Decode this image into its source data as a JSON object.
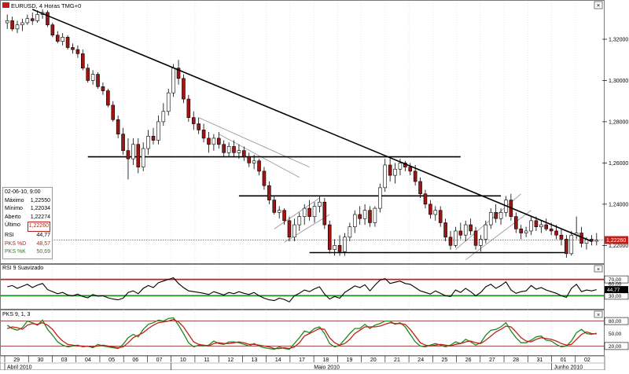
{
  "window": {
    "symbol_label": "EURUSD, 4 Horas TMG+0",
    "icons": [
      "flag-icon",
      "close-icon"
    ]
  },
  "colors": {
    "bull_candle": "#ffffff",
    "bear_candle": "#a01414",
    "trendline": "#000000",
    "channel": "#9a9a9a",
    "rsi_line": "#000000",
    "rsi_upper": "#c0201a",
    "rsi_lower": "#1e8a1e",
    "pks_d": "#c0201a",
    "pks_k": "#1e8a1e",
    "price_tag": "#c0201a"
  },
  "info_panel": {
    "date": "02-06-10, 9:00",
    "rows": [
      {
        "label": "Máximo",
        "value": "1,22550"
      },
      {
        "label": "Mínimo",
        "value": "1,22034"
      },
      {
        "label": "Aberto",
        "value": "1,22274"
      },
      {
        "label": "Último",
        "value": "1,22260"
      },
      {
        "label": "RSI",
        "value": "44,77"
      },
      {
        "label": "PKS %D",
        "value": "48,57"
      },
      {
        "label": "PKS %K",
        "value": "50,69"
      }
    ]
  },
  "chart_data": [
    {
      "type": "candlestick",
      "title": "EURUSD, 4 Horas TMG+0",
      "ylim": [
        1.2125,
        1.336
      ],
      "yticks": [
        "1,32000",
        "1,30000",
        "1,28000",
        "1,26000",
        "1,24000",
        "1,22000"
      ],
      "last_price_label": "1,22260",
      "last_price": 1.2226,
      "x_day_labels": [
        "29",
        "30",
        "03",
        "04",
        "05",
        "06",
        "07",
        "10",
        "11",
        "12",
        "13",
        "14",
        "17",
        "18",
        "19",
        "20",
        "21",
        "24",
        "25",
        "26",
        "27",
        "28",
        "31",
        "01",
        "02"
      ],
      "x_month_labels": [
        "Abril 2010",
        "Maio 2010",
        "Junho 2010"
      ],
      "candles": [
        [
          1.328,
          1.332,
          1.325,
          1.329
        ],
        [
          1.329,
          1.331,
          1.324,
          1.325
        ],
        [
          1.325,
          1.329,
          1.323,
          1.327
        ],
        [
          1.327,
          1.33,
          1.324,
          1.328
        ],
        [
          1.328,
          1.332,
          1.327,
          1.33
        ],
        [
          1.33,
          1.333,
          1.327,
          1.329
        ],
        [
          1.329,
          1.334,
          1.328,
          1.332
        ],
        [
          1.332,
          1.3345,
          1.33,
          1.333
        ],
        [
          1.333,
          1.334,
          1.326,
          1.327
        ],
        [
          1.327,
          1.328,
          1.321,
          1.322
        ],
        [
          1.322,
          1.324,
          1.318,
          1.319
        ],
        [
          1.319,
          1.323,
          1.317,
          1.321
        ],
        [
          1.321,
          1.322,
          1.315,
          1.316
        ],
        [
          1.316,
          1.318,
          1.313,
          1.315
        ],
        [
          1.315,
          1.317,
          1.311,
          1.313
        ],
        [
          1.313,
          1.315,
          1.305,
          1.306
        ],
        [
          1.306,
          1.308,
          1.299,
          1.3
        ],
        [
          1.3,
          1.305,
          1.298,
          1.303
        ],
        [
          1.303,
          1.304,
          1.296,
          1.297
        ],
        [
          1.297,
          1.299,
          1.293,
          1.295
        ],
        [
          1.295,
          1.296,
          1.287,
          1.288
        ],
        [
          1.288,
          1.29,
          1.28,
          1.281
        ],
        [
          1.281,
          1.283,
          1.272,
          1.274
        ],
        [
          1.274,
          1.277,
          1.264,
          1.266
        ],
        [
          1.266,
          1.272,
          1.252,
          1.262
        ],
        [
          1.262,
          1.272,
          1.259,
          1.269
        ],
        [
          1.269,
          1.272,
          1.255,
          1.258
        ],
        [
          1.258,
          1.27,
          1.256,
          1.267
        ],
        [
          1.267,
          1.276,
          1.264,
          1.273
        ],
        [
          1.273,
          1.277,
          1.269,
          1.271
        ],
        [
          1.271,
          1.283,
          1.269,
          1.28
        ],
        [
          1.28,
          1.289,
          1.278,
          1.285
        ],
        [
          1.285,
          1.296,
          1.283,
          1.294
        ],
        [
          1.294,
          1.308,
          1.292,
          1.306
        ],
        [
          1.306,
          1.31,
          1.298,
          1.301
        ],
        [
          1.301,
          1.303,
          1.289,
          1.291
        ],
        [
          1.291,
          1.293,
          1.28,
          1.282
        ],
        [
          1.282,
          1.285,
          1.276,
          1.279
        ],
        [
          1.279,
          1.282,
          1.274,
          1.276
        ],
        [
          1.276,
          1.279,
          1.27,
          1.272
        ],
        [
          1.272,
          1.275,
          1.265,
          1.269
        ],
        [
          1.269,
          1.274,
          1.266,
          1.272
        ],
        [
          1.272,
          1.275,
          1.267,
          1.269
        ],
        [
          1.269,
          1.271,
          1.263,
          1.265
        ],
        [
          1.265,
          1.27,
          1.263,
          1.268
        ],
        [
          1.268,
          1.271,
          1.263,
          1.265
        ],
        [
          1.265,
          1.269,
          1.262,
          1.266
        ],
        [
          1.266,
          1.268,
          1.261,
          1.263
        ],
        [
          1.263,
          1.265,
          1.258,
          1.26
        ],
        [
          1.26,
          1.264,
          1.257,
          1.261
        ],
        [
          1.261,
          1.262,
          1.254,
          1.256
        ],
        [
          1.256,
          1.258,
          1.247,
          1.249
        ],
        [
          1.249,
          1.251,
          1.24,
          1.242
        ],
        [
          1.242,
          1.244,
          1.235,
          1.236
        ],
        [
          1.236,
          1.239,
          1.233,
          1.237
        ],
        [
          1.237,
          1.238,
          1.23,
          1.232
        ],
        [
          1.232,
          1.234,
          1.222,
          1.224
        ],
        [
          1.224,
          1.233,
          1.222,
          1.23
        ],
        [
          1.23,
          1.236,
          1.227,
          1.234
        ],
        [
          1.234,
          1.24,
          1.23,
          1.238
        ],
        [
          1.238,
          1.242,
          1.232,
          1.234
        ],
        [
          1.234,
          1.241,
          1.231,
          1.239
        ],
        [
          1.239,
          1.244,
          1.236,
          1.241
        ],
        [
          1.241,
          1.243,
          1.228,
          1.23
        ],
        [
          1.23,
          1.232,
          1.216,
          1.218
        ],
        [
          1.218,
          1.223,
          1.215,
          1.22
        ],
        [
          1.22,
          1.225,
          1.215,
          1.217
        ],
        [
          1.217,
          1.226,
          1.215,
          1.224
        ],
        [
          1.224,
          1.231,
          1.222,
          1.229
        ],
        [
          1.229,
          1.237,
          1.226,
          1.235
        ],
        [
          1.235,
          1.239,
          1.23,
          1.233
        ],
        [
          1.233,
          1.24,
          1.23,
          1.237
        ],
        [
          1.237,
          1.239,
          1.229,
          1.231
        ],
        [
          1.231,
          1.239,
          1.229,
          1.238
        ],
        [
          1.238,
          1.25,
          1.236,
          1.248
        ],
        [
          1.248,
          1.262,
          1.246,
          1.259
        ],
        [
          1.259,
          1.263,
          1.251,
          1.254
        ],
        [
          1.254,
          1.26,
          1.25,
          1.257
        ],
        [
          1.257,
          1.262,
          1.254,
          1.26
        ],
        [
          1.26,
          1.261,
          1.256,
          1.258
        ],
        [
          1.258,
          1.26,
          1.254,
          1.256
        ],
        [
          1.256,
          1.259,
          1.249,
          1.251
        ],
        [
          1.251,
          1.253,
          1.243,
          1.245
        ],
        [
          1.245,
          1.247,
          1.238,
          1.24
        ],
        [
          1.24,
          1.242,
          1.233,
          1.235
        ],
        [
          1.235,
          1.239,
          1.232,
          1.237
        ],
        [
          1.237,
          1.239,
          1.229,
          1.231
        ],
        [
          1.231,
          1.233,
          1.222,
          1.224
        ],
        [
          1.224,
          1.227,
          1.218,
          1.22
        ],
        [
          1.22,
          1.229,
          1.219,
          1.227
        ],
        [
          1.227,
          1.231,
          1.223,
          1.225
        ],
        [
          1.225,
          1.232,
          1.222,
          1.23
        ],
        [
          1.23,
          1.233,
          1.225,
          1.227
        ],
        [
          1.227,
          1.229,
          1.218,
          1.22
        ],
        [
          1.22,
          1.225,
          1.217,
          1.223
        ],
        [
          1.223,
          1.232,
          1.221,
          1.23
        ],
        [
          1.23,
          1.238,
          1.228,
          1.236
        ],
        [
          1.236,
          1.24,
          1.231,
          1.233
        ],
        [
          1.233,
          1.238,
          1.23,
          1.236
        ],
        [
          1.236,
          1.244,
          1.234,
          1.242
        ],
        [
          1.242,
          1.245,
          1.232,
          1.234
        ],
        [
          1.234,
          1.236,
          1.226,
          1.228
        ],
        [
          1.228,
          1.23,
          1.223,
          1.226
        ],
        [
          1.226,
          1.229,
          1.224,
          1.227
        ],
        [
          1.227,
          1.234,
          1.225,
          1.232
        ],
        [
          1.232,
          1.234,
          1.227,
          1.229
        ],
        [
          1.229,
          1.232,
          1.226,
          1.23
        ],
        [
          1.23,
          1.233,
          1.227,
          1.228
        ],
        [
          1.228,
          1.231,
          1.225,
          1.227
        ],
        [
          1.227,
          1.23,
          1.223,
          1.225
        ],
        [
          1.225,
          1.228,
          1.22,
          1.223
        ],
        [
          1.223,
          1.225,
          1.214,
          1.216
        ],
        [
          1.216,
          1.227,
          1.215,
          1.225
        ],
        [
          1.225,
          1.234,
          1.223,
          1.226
        ],
        [
          1.226,
          1.229,
          1.219,
          1.221
        ],
        [
          1.221,
          1.224,
          1.218,
          1.223
        ],
        [
          1.223,
          1.225,
          1.22,
          1.222
        ],
        [
          1.222,
          1.226,
          1.22,
          1.2226
        ]
      ],
      "support_resistance_lines": [
        {
          "price": 1.263,
          "from_index": 16,
          "to_index": 90
        },
        {
          "price": 1.244,
          "from_index": 46,
          "to_index": 98
        },
        {
          "price": 1.2165,
          "from_index": 60,
          "to_index": 111
        }
      ],
      "trendline": {
        "from": [
          5,
          1.3345
        ],
        "to": [
          116,
          1.222
        ]
      }
    },
    {
      "type": "line",
      "title": "RSI 9 Suavizado",
      "ylim": [
        0,
        100
      ],
      "yticks": [
        "70,00",
        "60,00",
        "40,00",
        "30,00"
      ],
      "levels": [
        70,
        30
      ],
      "last_value_label": "44,77",
      "values": [
        52,
        55,
        48,
        53,
        58,
        50,
        56,
        60,
        45,
        40,
        35,
        38,
        32,
        30,
        34,
        28,
        25,
        33,
        29,
        30,
        25,
        22,
        20,
        24,
        38,
        42,
        35,
        48,
        55,
        50,
        62,
        66,
        70,
        74,
        60,
        50,
        42,
        40,
        38,
        36,
        33,
        40,
        36,
        32,
        38,
        35,
        40,
        36,
        33,
        38,
        30,
        24,
        20,
        18,
        24,
        21,
        15,
        30,
        36,
        44,
        40,
        47,
        52,
        34,
        22,
        28,
        24,
        38,
        46,
        54,
        50,
        57,
        42,
        56,
        68,
        72,
        60,
        63,
        66,
        60,
        58,
        50,
        42,
        38,
        34,
        42,
        36,
        30,
        28,
        44,
        38,
        48,
        40,
        30,
        38,
        52,
        58,
        48,
        55,
        64,
        44,
        36,
        40,
        42,
        55,
        46,
        50,
        44,
        40,
        36,
        30,
        26,
        48,
        58,
        40,
        44,
        42,
        45
      ]
    },
    {
      "type": "line",
      "title": "PKS 9, 1, 3",
      "ylim": [
        0,
        100
      ],
      "yticks": [
        "80,00",
        "50,00",
        "20,00"
      ],
      "levels": [
        80,
        20
      ],
      "series": [
        {
          "name": "PKS %D",
          "color": "#c0201a",
          "last_value_label": "48,57"
        },
        {
          "name": "PKS %K",
          "color": "#1e8a1e",
          "last_value_label": "50,69"
        }
      ],
      "values_d": [
        62,
        66,
        64,
        60,
        70,
        74,
        72,
        76,
        70,
        60,
        44,
        32,
        24,
        22,
        20,
        20,
        19,
        18,
        20,
        22,
        20,
        18,
        16,
        18,
        28,
        40,
        46,
        52,
        62,
        70,
        76,
        78,
        80,
        84,
        78,
        66,
        48,
        30,
        24,
        22,
        20,
        26,
        28,
        26,
        26,
        28,
        30,
        28,
        24,
        24,
        22,
        20,
        18,
        14,
        14,
        16,
        14,
        18,
        28,
        44,
        50,
        56,
        62,
        60,
        40,
        28,
        22,
        26,
        36,
        50,
        58,
        66,
        66,
        66,
        68,
        72,
        76,
        74,
        74,
        72,
        60,
        44,
        28,
        22,
        20,
        22,
        24,
        22,
        20,
        24,
        26,
        30,
        32,
        28,
        26,
        34,
        44,
        54,
        60,
        68,
        66,
        54,
        40,
        32,
        30,
        36,
        40,
        38,
        36,
        32,
        26,
        22,
        24,
        36,
        48,
        54,
        50,
        49
      ],
      "values_k": [
        70,
        62,
        58,
        64,
        80,
        76,
        70,
        82,
        60,
        46,
        30,
        22,
        18,
        20,
        22,
        18,
        20,
        16,
        24,
        20,
        18,
        16,
        14,
        24,
        40,
        48,
        42,
        60,
        72,
        76,
        82,
        80,
        86,
        88,
        70,
        50,
        28,
        18,
        22,
        20,
        22,
        32,
        26,
        24,
        30,
        30,
        28,
        24,
        20,
        26,
        20,
        16,
        14,
        12,
        18,
        14,
        12,
        26,
        40,
        56,
        52,
        62,
        66,
        50,
        26,
        18,
        22,
        36,
        50,
        62,
        62,
        72,
        62,
        70,
        74,
        80,
        80,
        72,
        76,
        66,
        48,
        30,
        20,
        18,
        22,
        26,
        22,
        18,
        22,
        30,
        26,
        36,
        30,
        22,
        28,
        46,
        58,
        60,
        66,
        76,
        56,
        40,
        28,
        28,
        34,
        42,
        44,
        34,
        32,
        24,
        18,
        20,
        32,
        52,
        60,
        50,
        48,
        51
      ]
    }
  ]
}
